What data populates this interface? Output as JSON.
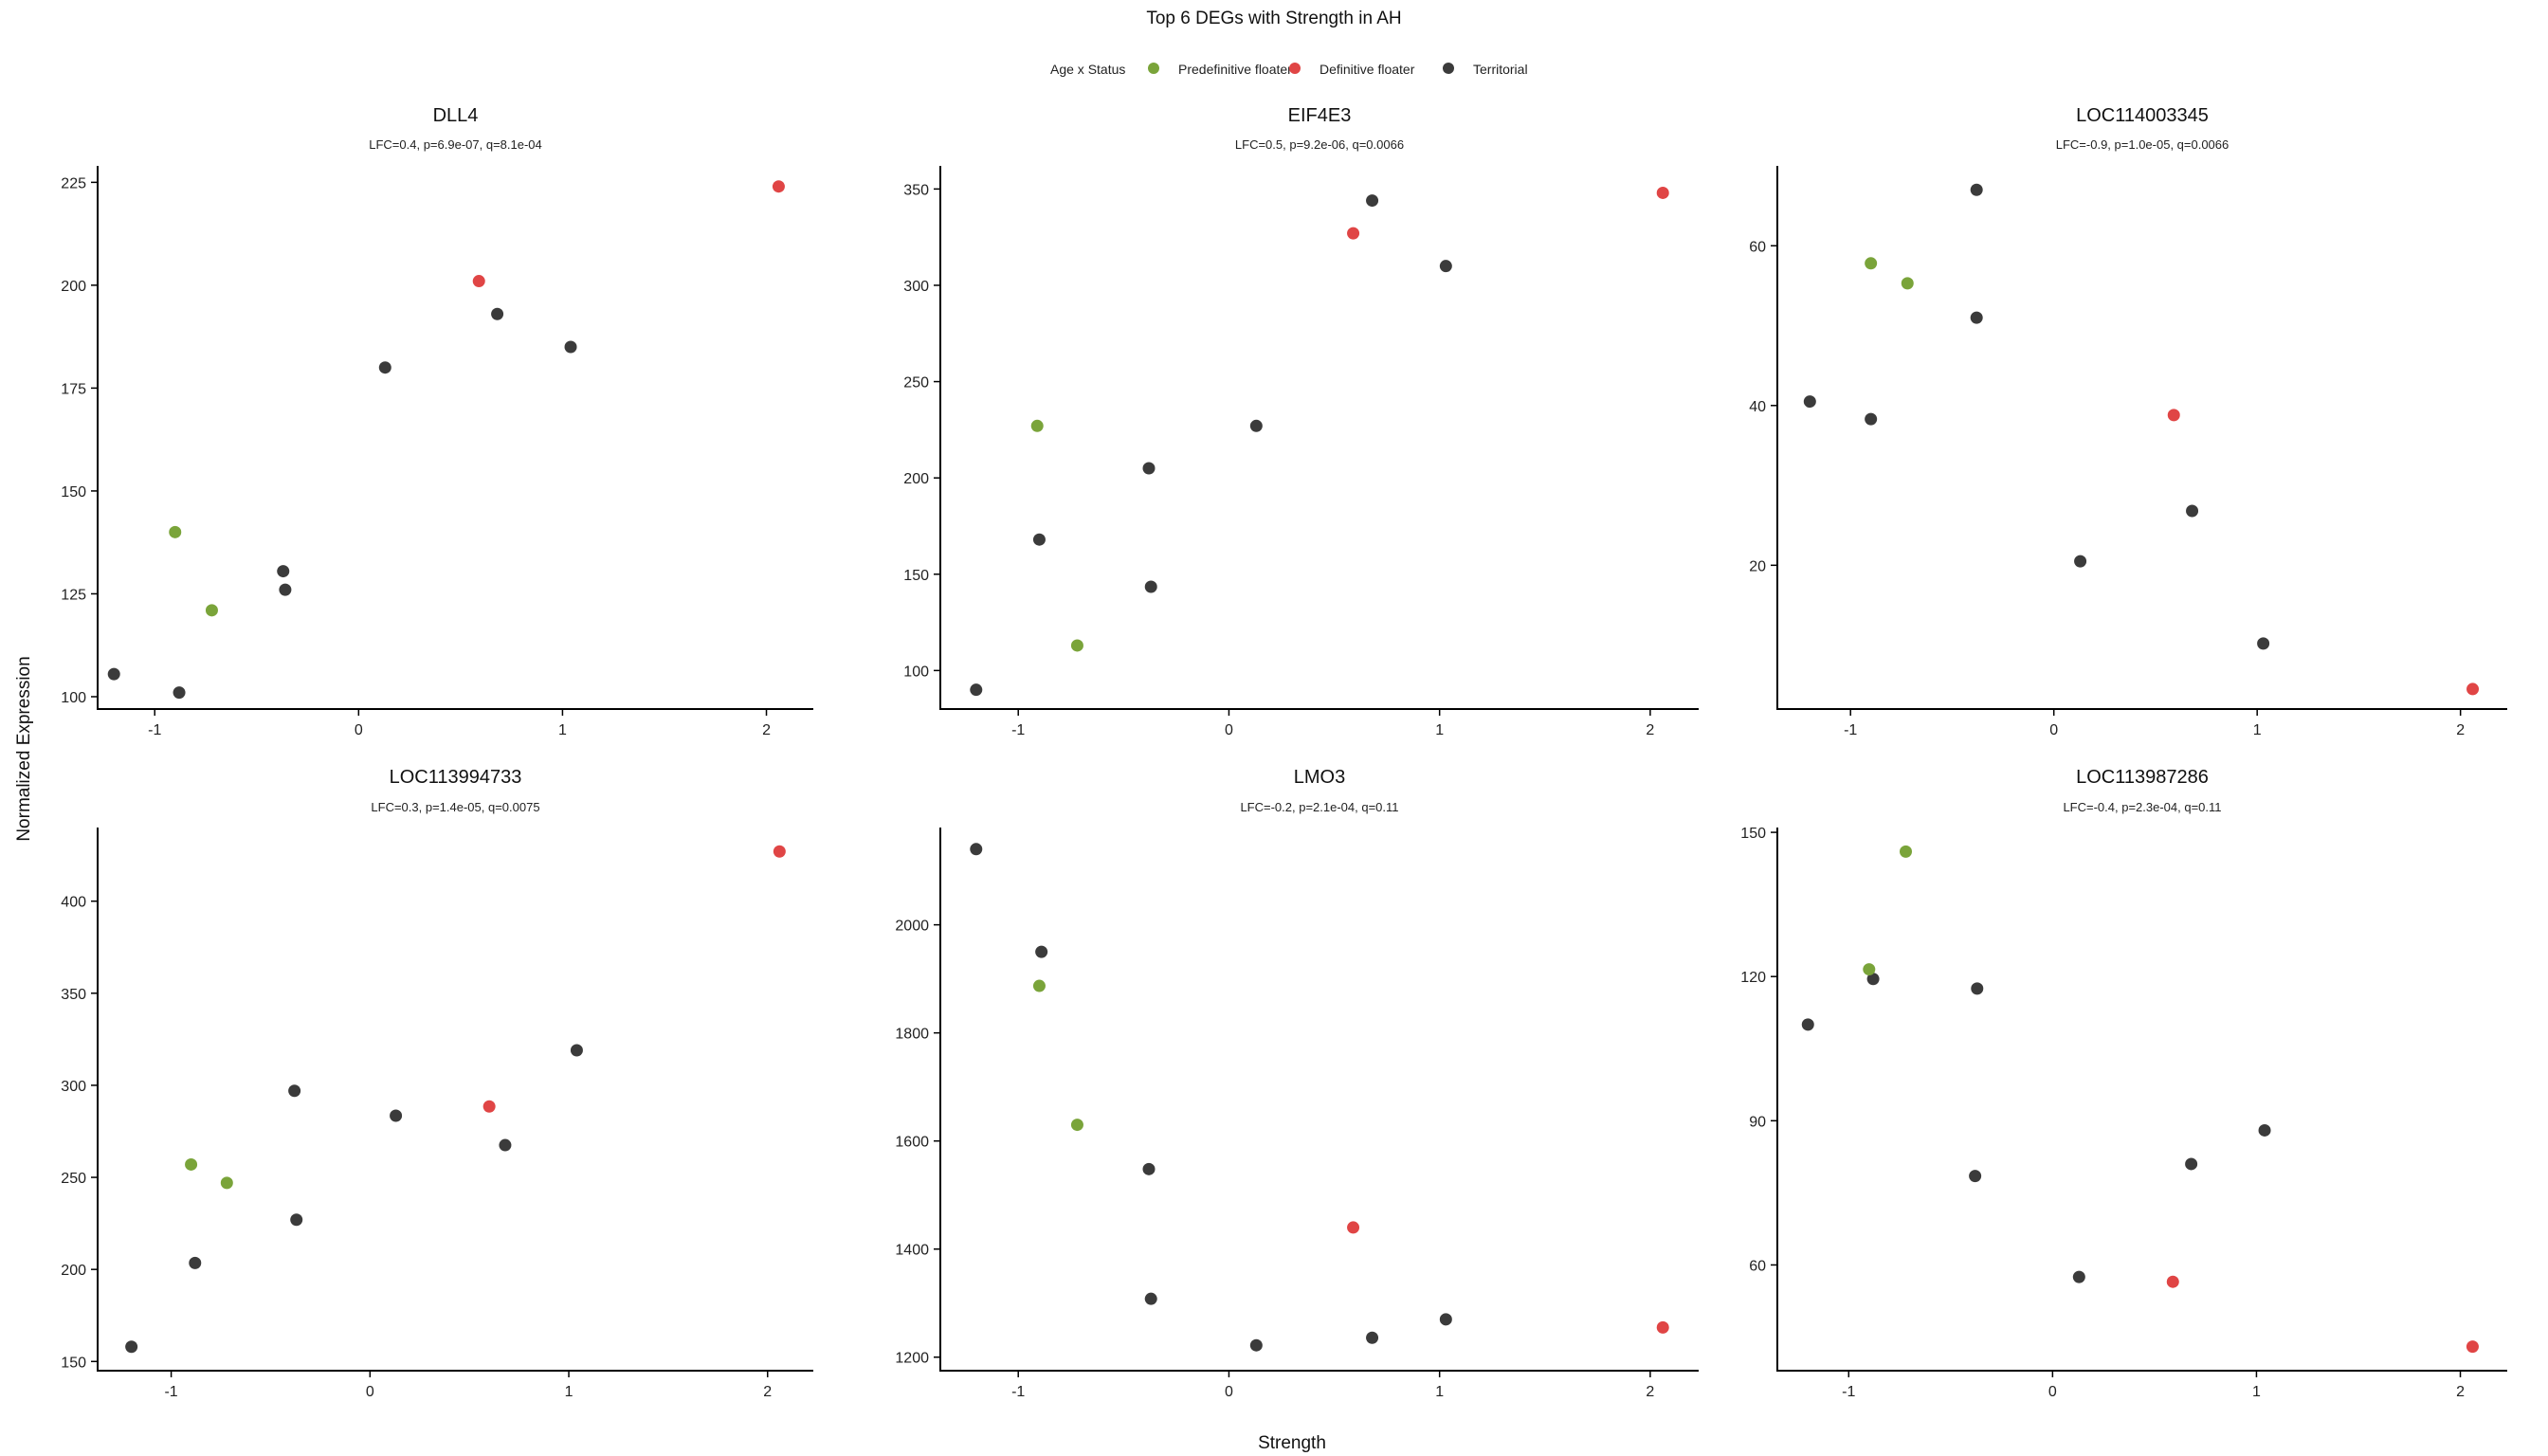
{
  "title": "Top 6 DEGs with Strength in AH",
  "xlabel": "Strength",
  "ylabel": "Normalized Expression",
  "legend": {
    "title": "Age x Status",
    "position": "top-center",
    "items": [
      {
        "key": "pre",
        "label": "Predefinitive floater",
        "color": "#7aa43a"
      },
      {
        "key": "def",
        "label": "Definitive floater",
        "color": "#e04545"
      },
      {
        "key": "ter",
        "label": "Territorial",
        "color": "#3b3b3b"
      }
    ]
  },
  "chart_data": [
    {
      "type": "scatter",
      "title": "DLL4",
      "subtitle": "LFC=0.4, p=6.9e-07, q=8.1e-04",
      "xlim": [
        -1.28,
        2.23
      ],
      "ylim": [
        97,
        229
      ],
      "xticks": [
        "-1",
        "0",
        "1",
        "2"
      ],
      "yticks": [
        "100",
        "125",
        "150",
        "175",
        "200",
        "225"
      ],
      "grid": false,
      "points": [
        {
          "x": -1.2,
          "y": 105.5,
          "group": "ter"
        },
        {
          "x": -0.88,
          "y": 101,
          "group": "ter"
        },
        {
          "x": -0.9,
          "y": 140,
          "group": "pre"
        },
        {
          "x": -0.72,
          "y": 121,
          "group": "pre"
        },
        {
          "x": -0.37,
          "y": 130.5,
          "group": "ter"
        },
        {
          "x": -0.36,
          "y": 126,
          "group": "ter"
        },
        {
          "x": 0.13,
          "y": 180,
          "group": "ter"
        },
        {
          "x": 0.59,
          "y": 201,
          "group": "def"
        },
        {
          "x": 0.68,
          "y": 193,
          "group": "ter"
        },
        {
          "x": 1.04,
          "y": 185,
          "group": "ter"
        },
        {
          "x": 2.06,
          "y": 224,
          "group": "def"
        }
      ]
    },
    {
      "type": "scatter",
      "title": "EIF4E3",
      "subtitle": "LFC=0.5, p=9.2e-06, q=0.0066",
      "xlim": [
        -1.37,
        2.23
      ],
      "ylim": [
        80,
        362
      ],
      "xticks": [
        "-1",
        "0",
        "1",
        "2"
      ],
      "yticks": [
        "100",
        "150",
        "200",
        "250",
        "300",
        "350"
      ],
      "grid": false,
      "points": [
        {
          "x": -1.2,
          "y": 90,
          "group": "ter"
        },
        {
          "x": -0.9,
          "y": 168,
          "group": "ter"
        },
        {
          "x": -0.91,
          "y": 227,
          "group": "pre"
        },
        {
          "x": -0.72,
          "y": 113,
          "group": "pre"
        },
        {
          "x": -0.38,
          "y": 205,
          "group": "ter"
        },
        {
          "x": -0.37,
          "y": 143.5,
          "group": "ter"
        },
        {
          "x": 0.13,
          "y": 227,
          "group": "ter"
        },
        {
          "x": 0.59,
          "y": 327,
          "group": "def"
        },
        {
          "x": 0.68,
          "y": 344,
          "group": "ter"
        },
        {
          "x": 1.03,
          "y": 310,
          "group": "ter"
        },
        {
          "x": 2.06,
          "y": 348,
          "group": "def"
        }
      ]
    },
    {
      "type": "scatter",
      "title": "LOC114003345",
      "subtitle": "LFC=-0.9, p=1.0e-05, q=0.0066",
      "xlim": [
        -1.36,
        2.23
      ],
      "ylim": [
        2,
        70
      ],
      "xticks": [
        "-1",
        "0",
        "1",
        "2"
      ],
      "yticks": [
        "20",
        "40",
        "60"
      ],
      "grid": false,
      "points": [
        {
          "x": -1.2,
          "y": 40.5,
          "group": "ter"
        },
        {
          "x": -0.9,
          "y": 38.3,
          "group": "ter"
        },
        {
          "x": -0.9,
          "y": 57.8,
          "group": "pre"
        },
        {
          "x": -0.72,
          "y": 55.3,
          "group": "pre"
        },
        {
          "x": -0.38,
          "y": 67,
          "group": "ter"
        },
        {
          "x": -0.38,
          "y": 51,
          "group": "ter"
        },
        {
          "x": 0.13,
          "y": 20.5,
          "group": "ter"
        },
        {
          "x": 0.59,
          "y": 38.8,
          "group": "def"
        },
        {
          "x": 0.68,
          "y": 26.8,
          "group": "ter"
        },
        {
          "x": 1.03,
          "y": 10.2,
          "group": "ter"
        },
        {
          "x": 2.06,
          "y": 4.5,
          "group": "def"
        }
      ]
    },
    {
      "type": "scatter",
      "title": "LOC113994733",
      "subtitle": "LFC=0.3, p=1.4e-05, q=0.0075",
      "xlim": [
        -1.37,
        2.23
      ],
      "ylim": [
        145,
        440
      ],
      "xticks": [
        "-1",
        "0",
        "1",
        "2"
      ],
      "yticks": [
        "150",
        "200",
        "250",
        "300",
        "350",
        "400"
      ],
      "grid": false,
      "points": [
        {
          "x": -1.2,
          "y": 158,
          "group": "ter"
        },
        {
          "x": -0.88,
          "y": 203.5,
          "group": "ter"
        },
        {
          "x": -0.9,
          "y": 257,
          "group": "pre"
        },
        {
          "x": -0.72,
          "y": 247,
          "group": "pre"
        },
        {
          "x": -0.38,
          "y": 297,
          "group": "ter"
        },
        {
          "x": -0.37,
          "y": 227,
          "group": "ter"
        },
        {
          "x": 0.13,
          "y": 283.5,
          "group": "ter"
        },
        {
          "x": 0.6,
          "y": 288.5,
          "group": "def"
        },
        {
          "x": 0.68,
          "y": 267.5,
          "group": "ter"
        },
        {
          "x": 1.04,
          "y": 319,
          "group": "ter"
        },
        {
          "x": 2.06,
          "y": 427,
          "group": "def"
        }
      ]
    },
    {
      "type": "scatter",
      "title": "LMO3",
      "subtitle": "LFC=-0.2, p=2.1e-04, q=0.11",
      "xlim": [
        -1.37,
        2.23
      ],
      "ylim": [
        1175,
        2180
      ],
      "xticks": [
        "-1",
        "0",
        "1",
        "2"
      ],
      "yticks": [
        "1200",
        "1400",
        "1600",
        "1800",
        "2000"
      ],
      "grid": false,
      "points": [
        {
          "x": -1.2,
          "y": 2140,
          "group": "ter"
        },
        {
          "x": -0.89,
          "y": 1950,
          "group": "ter"
        },
        {
          "x": -0.9,
          "y": 1887,
          "group": "pre"
        },
        {
          "x": -0.72,
          "y": 1630,
          "group": "pre"
        },
        {
          "x": -0.38,
          "y": 1548,
          "group": "ter"
        },
        {
          "x": -0.37,
          "y": 1308,
          "group": "ter"
        },
        {
          "x": 0.13,
          "y": 1222,
          "group": "ter"
        },
        {
          "x": 0.59,
          "y": 1440,
          "group": "def"
        },
        {
          "x": 0.68,
          "y": 1236,
          "group": "ter"
        },
        {
          "x": 1.03,
          "y": 1270,
          "group": "ter"
        },
        {
          "x": 2.06,
          "y": 1255,
          "group": "def"
        }
      ]
    },
    {
      "type": "scatter",
      "title": "LOC113987286",
      "subtitle": "LFC=-0.4, p=2.3e-04, q=0.11",
      "xlim": [
        -1.35,
        2.23
      ],
      "ylim": [
        38,
        151
      ],
      "xticks": [
        "-1",
        "0",
        "1",
        "2"
      ],
      "yticks": [
        "60",
        "90",
        "120",
        "150"
      ],
      "grid": false,
      "points": [
        {
          "x": -1.2,
          "y": 110,
          "group": "ter"
        },
        {
          "x": -0.88,
          "y": 119.5,
          "group": "ter"
        },
        {
          "x": -0.9,
          "y": 121.5,
          "group": "pre"
        },
        {
          "x": -0.72,
          "y": 146,
          "group": "pre"
        },
        {
          "x": -0.37,
          "y": 117.5,
          "group": "ter"
        },
        {
          "x": -0.38,
          "y": 78.5,
          "group": "ter"
        },
        {
          "x": 0.13,
          "y": 57.5,
          "group": "ter"
        },
        {
          "x": 0.59,
          "y": 56.5,
          "group": "def"
        },
        {
          "x": 0.68,
          "y": 81,
          "group": "ter"
        },
        {
          "x": 1.04,
          "y": 88,
          "group": "ter"
        },
        {
          "x": 2.06,
          "y": 43,
          "group": "def"
        }
      ]
    }
  ]
}
